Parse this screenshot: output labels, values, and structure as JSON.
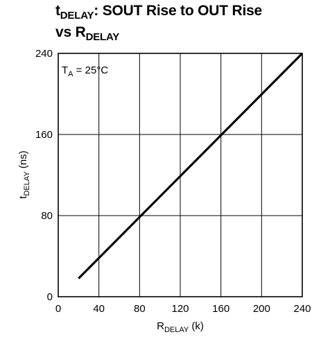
{
  "chart_data": {
    "type": "line",
    "title": {
      "line1_main": "t",
      "line1_sub": "DELAY",
      "line1_rest": ": SOUT Rise to OUT Rise",
      "line2_main": "vs R",
      "line2_sub": "DELAY"
    },
    "xlabel": {
      "main": "R",
      "sub": "DELAY",
      "rest": " (k)"
    },
    "ylabel": {
      "main": "t",
      "sub": "DELAY",
      "rest": " (ns)"
    },
    "annotation": {
      "main": "T",
      "sub": "A",
      "rest": " = 25°C"
    },
    "xlim": [
      0,
      240
    ],
    "ylim": [
      0,
      240
    ],
    "x_ticks": [
      0,
      40,
      80,
      120,
      160,
      200,
      240
    ],
    "y_ticks": [
      0,
      80,
      160,
      240
    ],
    "x_tick_labels": [
      "0",
      "40",
      "80",
      "120",
      "160",
      "200",
      "240"
    ],
    "y_tick_labels": [
      "0",
      "80",
      "160",
      "240"
    ],
    "x_grid": [
      40,
      80,
      120,
      160,
      200
    ],
    "y_grid": [
      80,
      160
    ],
    "grid": true,
    "series": [
      {
        "x": [
          20,
          240
        ],
        "y": [
          18,
          240
        ]
      }
    ]
  }
}
